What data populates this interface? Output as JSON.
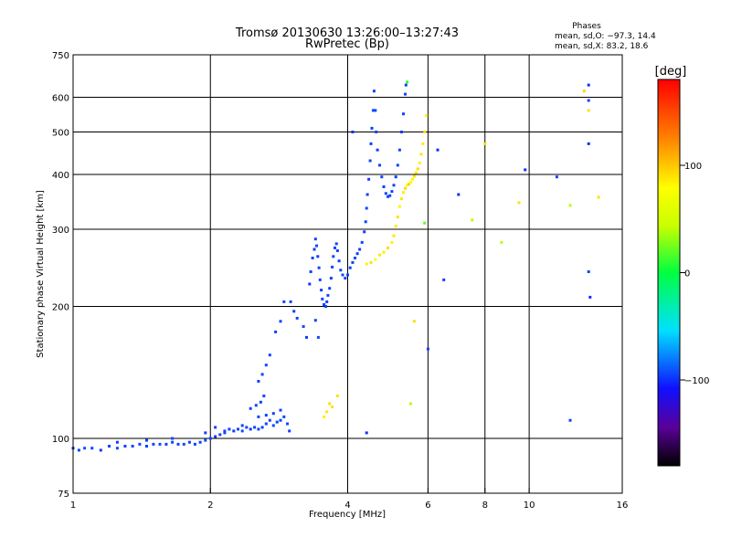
{
  "header": {
    "title": "Tromsø 20130630 13:26:00–13:27:43",
    "subtitle": "RwPretec (Bp)",
    "phases_title": "Phases",
    "phases_line1": "mean, sd,O: −97.3, 14.4",
    "phases_line2": "mean, sd,X:  83.2, 18.6"
  },
  "colorbar": {
    "unit": "[deg]",
    "ticks": [
      {
        "value": 100,
        "label": "100"
      },
      {
        "value": 0,
        "label": "0"
      },
      {
        "value": -100,
        "label": "−100"
      }
    ],
    "range": [
      -180,
      180
    ],
    "colormap": "rainbow"
  },
  "chart_data": {
    "type": "scatter",
    "title": "Tromsø 20130630 13:26:00–13:27:43",
    "subtitle": "RwPretec (Bp)",
    "xlabel": "Frequency [MHz]",
    "ylabel": "Stationary phase Virtual Height [km]",
    "xscale": "log",
    "yscale": "log",
    "xlim": [
      1,
      16
    ],
    "ylim": [
      75,
      750
    ],
    "xticks": [
      {
        "value": 1,
        "label": "1"
      },
      {
        "value": 2,
        "label": "2"
      },
      {
        "value": 4,
        "label": "4"
      },
      {
        "value": 6,
        "label": "6"
      },
      {
        "value": 8,
        "label": "8"
      },
      {
        "value": 10,
        "label": "10"
      },
      {
        "value": 16,
        "label": "16"
      }
    ],
    "yticks": [
      {
        "value": 75,
        "label": "75"
      },
      {
        "value": 100,
        "label": "100"
      },
      {
        "value": 200,
        "label": "200"
      },
      {
        "value": 300,
        "label": "300"
      },
      {
        "value": 400,
        "label": "400"
      },
      {
        "value": 500,
        "label": "500"
      },
      {
        "value": 600,
        "label": "600"
      },
      {
        "value": 750,
        "label": "750"
      }
    ],
    "xgrid": [
      2,
      4,
      6,
      8,
      10
    ],
    "ygrid": [
      100,
      200,
      300,
      400,
      500,
      600
    ],
    "color_variable": "phase [deg]",
    "series": [
      {
        "points": [
          [
            1.0,
            95,
            -95
          ],
          [
            1.03,
            94,
            -95
          ],
          [
            1.06,
            95,
            -90
          ],
          [
            1.1,
            95,
            -95
          ],
          [
            1.15,
            94,
            -98
          ],
          [
            1.2,
            96,
            -95
          ],
          [
            1.25,
            95,
            -92
          ],
          [
            1.3,
            96,
            -96
          ],
          [
            1.35,
            96,
            -95
          ],
          [
            1.4,
            97,
            -93
          ],
          [
            1.45,
            96,
            -95
          ],
          [
            1.5,
            97,
            -95
          ],
          [
            1.55,
            97,
            -92
          ],
          [
            1.6,
            97,
            -96
          ],
          [
            1.65,
            98,
            -95
          ],
          [
            1.7,
            97,
            -95
          ],
          [
            1.75,
            97,
            -93
          ],
          [
            1.8,
            98,
            -97
          ],
          [
            1.85,
            97,
            -95
          ],
          [
            1.9,
            98,
            -95
          ],
          [
            1.95,
            99,
            -93
          ],
          [
            2.0,
            100,
            -95
          ],
          [
            2.05,
            101,
            -96
          ],
          [
            2.1,
            102,
            -95
          ],
          [
            2.15,
            104,
            -94
          ],
          [
            2.2,
            105,
            -95
          ],
          [
            2.25,
            104,
            -97
          ],
          [
            2.3,
            105,
            -95
          ],
          [
            2.35,
            104,
            -93
          ],
          [
            2.4,
            106,
            -95
          ],
          [
            2.45,
            105,
            -96
          ],
          [
            2.5,
            106,
            -95
          ],
          [
            2.55,
            105,
            -94
          ],
          [
            2.6,
            106,
            -96
          ],
          [
            2.65,
            108,
            -95
          ],
          [
            2.7,
            110,
            -95
          ],
          [
            2.75,
            107,
            -93
          ],
          [
            2.8,
            109,
            -96
          ],
          [
            2.85,
            110,
            -95
          ],
          [
            2.9,
            112,
            -94
          ]
        ]
      },
      {
        "points": [
          [
            1.25,
            98,
            -97
          ],
          [
            1.45,
            99,
            -95
          ],
          [
            1.65,
            100,
            -92
          ],
          [
            1.95,
            103,
            -96
          ],
          [
            2.05,
            106,
            -95
          ],
          [
            2.15,
            103,
            -93
          ],
          [
            2.35,
            107,
            -95
          ],
          [
            2.55,
            112,
            -94
          ],
          [
            2.65,
            113,
            -95
          ],
          [
            2.75,
            114,
            -96
          ],
          [
            2.85,
            116,
            -95
          ],
          [
            2.95,
            108,
            -93
          ],
          [
            2.98,
            104,
            -96
          ],
          [
            2.45,
            117,
            -95
          ],
          [
            2.52,
            119,
            -94
          ],
          [
            2.58,
            121,
            -95
          ],
          [
            2.62,
            125,
            -93
          ],
          [
            2.55,
            135,
            -96
          ],
          [
            2.6,
            140,
            -95
          ],
          [
            2.65,
            147,
            -94
          ],
          [
            2.7,
            155,
            -95
          ],
          [
            2.78,
            175,
            -96
          ],
          [
            2.85,
            185,
            -95
          ],
          [
            2.9,
            205,
            -94
          ],
          [
            3.0,
            205,
            -95
          ],
          [
            3.05,
            195,
            -96
          ],
          [
            3.1,
            188,
            -95
          ],
          [
            3.2,
            180,
            -92
          ],
          [
            3.25,
            170,
            -96
          ],
          [
            3.4,
            186,
            -95
          ],
          [
            3.45,
            170,
            -93
          ]
        ]
      },
      {
        "points": [
          [
            3.3,
            225,
            -98
          ],
          [
            3.32,
            240,
            -96
          ],
          [
            3.35,
            258,
            -95
          ],
          [
            3.38,
            270,
            -97
          ],
          [
            3.4,
            285,
            -95
          ],
          [
            3.42,
            275,
            -93
          ],
          [
            3.44,
            260,
            -96
          ],
          [
            3.46,
            245,
            -95
          ],
          [
            3.48,
            230,
            -94
          ],
          [
            3.5,
            218,
            -96
          ],
          [
            3.52,
            208,
            -95
          ],
          [
            3.55,
            202,
            -97
          ],
          [
            3.58,
            200,
            -95
          ],
          [
            3.6,
            205,
            -96
          ],
          [
            3.62,
            212,
            -94
          ],
          [
            3.65,
            220,
            -95
          ],
          [
            3.68,
            232,
            -96
          ],
          [
            3.7,
            246,
            -95
          ],
          [
            3.72,
            260,
            -94
          ],
          [
            3.75,
            272,
            -96
          ],
          [
            3.78,
            278,
            -95
          ],
          [
            3.8,
            268,
            -93
          ],
          [
            3.83,
            254,
            -96
          ],
          [
            3.86,
            242,
            -95
          ],
          [
            3.9,
            236,
            -94
          ],
          [
            3.95,
            232,
            -96
          ],
          [
            4.0,
            236,
            -95
          ],
          [
            4.05,
            245,
            -96
          ],
          [
            4.1,
            252,
            -95
          ],
          [
            4.15,
            258,
            -94
          ],
          [
            4.2,
            264,
            -96
          ],
          [
            4.25,
            270,
            -95
          ],
          [
            4.3,
            280,
            -94
          ],
          [
            4.35,
            296,
            -96
          ],
          [
            4.38,
            312,
            -95
          ],
          [
            4.4,
            335,
            -94
          ],
          [
            4.42,
            360,
            -96
          ],
          [
            4.45,
            390,
            -95
          ],
          [
            4.48,
            430,
            -94
          ],
          [
            4.5,
            470,
            -96
          ],
          [
            4.52,
            510,
            -95
          ],
          [
            4.55,
            560,
            -94
          ],
          [
            4.57,
            620,
            -96
          ],
          [
            4.6,
            560,
            -95
          ],
          [
            4.62,
            500,
            -94
          ],
          [
            4.65,
            455,
            -96
          ],
          [
            4.7,
            420,
            -95
          ],
          [
            4.75,
            395,
            -94
          ],
          [
            4.8,
            375,
            -96
          ],
          [
            4.85,
            362,
            -95
          ],
          [
            4.9,
            356,
            -94
          ],
          [
            4.95,
            358,
            -96
          ],
          [
            5.0,
            366,
            -95
          ],
          [
            5.05,
            378,
            -94
          ],
          [
            5.1,
            395,
            -96
          ],
          [
            5.15,
            420,
            -95
          ],
          [
            5.2,
            455,
            -94
          ],
          [
            5.25,
            500,
            -96
          ],
          [
            5.3,
            550,
            -95
          ],
          [
            5.35,
            610,
            -94
          ],
          [
            5.37,
            640,
            -96
          ]
        ]
      },
      {
        "points": [
          [
            4.4,
            250,
            85
          ],
          [
            4.5,
            252,
            90
          ],
          [
            4.6,
            256,
            80
          ],
          [
            4.7,
            262,
            88
          ],
          [
            4.8,
            266,
            85
          ],
          [
            4.9,
            272,
            92
          ],
          [
            5.0,
            280,
            84
          ],
          [
            5.05,
            290,
            88
          ],
          [
            5.1,
            305,
            86
          ],
          [
            5.15,
            320,
            90
          ],
          [
            5.2,
            338,
            83
          ],
          [
            5.25,
            352,
            88
          ],
          [
            5.3,
            364,
            85
          ],
          [
            5.35,
            372,
            92
          ],
          [
            5.4,
            378,
            80
          ],
          [
            5.45,
            380,
            95
          ],
          [
            5.5,
            384,
            75
          ],
          [
            5.55,
            390,
            70
          ],
          [
            5.6,
            396,
            88
          ],
          [
            5.65,
            404,
            85
          ],
          [
            5.7,
            412,
            92
          ],
          [
            5.75,
            425,
            84
          ],
          [
            5.8,
            445,
            88
          ],
          [
            5.85,
            470,
            86
          ],
          [
            5.9,
            500,
            90
          ],
          [
            5.95,
            545,
            83
          ],
          [
            3.6,
            115,
            88
          ],
          [
            3.7,
            118,
            90
          ],
          [
            3.55,
            112,
            85
          ],
          [
            3.65,
            120,
            92
          ]
        ]
      },
      {
        "points": [
          [
            6.3,
            455,
            -100
          ],
          [
            6.5,
            230,
            -95
          ],
          [
            7.0,
            360,
            -100
          ],
          [
            7.5,
            315,
            40
          ],
          [
            8.0,
            470,
            90
          ],
          [
            8.7,
            280,
            40
          ],
          [
            9.8,
            410,
            -100
          ],
          [
            11.5,
            395,
            -95
          ],
          [
            12.3,
            340,
            40
          ],
          [
            13.5,
            640,
            -100
          ],
          [
            13.5,
            590,
            -95
          ],
          [
            13.5,
            560,
            90
          ],
          [
            13.5,
            470,
            -100
          ],
          [
            13.5,
            240,
            -95
          ],
          [
            13.6,
            210,
            -100
          ],
          [
            14.2,
            355,
            90
          ],
          [
            12.3,
            110,
            -95
          ],
          [
            4.4,
            103,
            -100
          ],
          [
            5.5,
            120,
            40
          ],
          [
            3.8,
            125,
            90
          ],
          [
            6.0,
            160,
            -95
          ],
          [
            5.6,
            185,
            90
          ],
          [
            5.9,
            310,
            20
          ],
          [
            5.4,
            650,
            10
          ],
          [
            4.1,
            500,
            -100
          ],
          [
            9.5,
            345,
            90
          ],
          [
            13.2,
            620,
            95
          ]
        ]
      }
    ]
  }
}
